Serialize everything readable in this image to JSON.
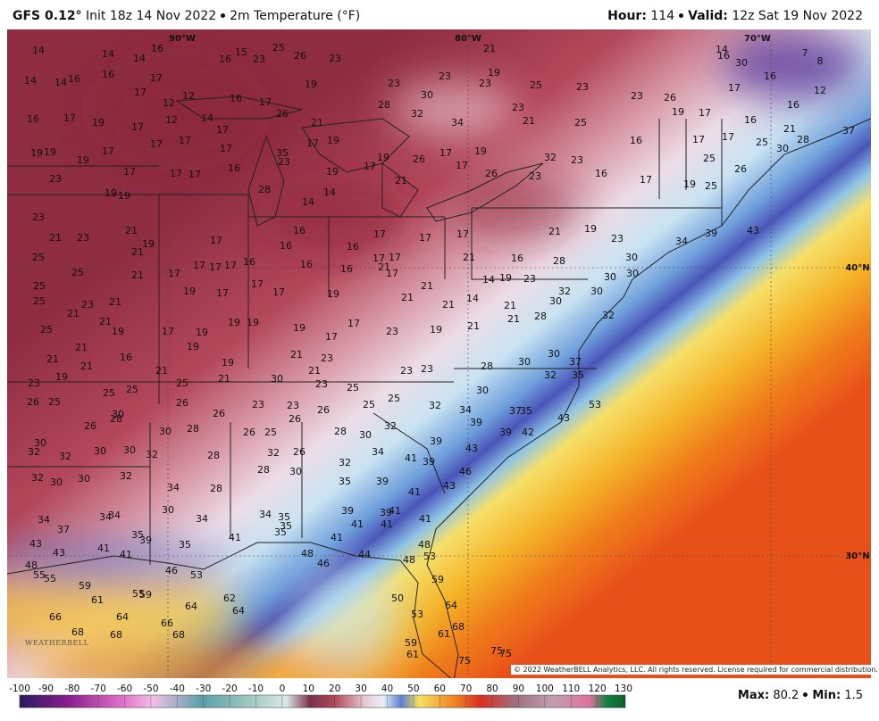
{
  "header": {
    "model": "GFS 0.12°",
    "init": "Init 18z 14 Nov 2022",
    "field": "2m Temperature (°F)",
    "hour_label": "Hour:",
    "hour": 114,
    "valid_label": "Valid:",
    "valid": "12z Sat 19 Nov 2022"
  },
  "map": {
    "lon_labels": [
      "90°W",
      "80°W",
      "70°W"
    ],
    "lat_labels": [
      "40°N",
      "30°N"
    ],
    "stations": [
      14,
      14,
      16,
      14,
      15,
      25,
      26,
      23,
      16,
      23,
      21,
      19,
      23,
      23,
      25,
      23,
      14,
      16,
      7,
      30,
      8,
      14,
      14,
      16,
      16,
      17,
      17,
      12,
      12,
      16,
      17,
      19,
      23,
      28,
      32,
      34,
      30,
      23,
      21,
      25,
      23,
      26,
      19,
      17,
      17,
      16,
      12,
      16,
      16,
      28,
      21,
      25,
      30,
      37,
      16,
      17,
      19,
      17,
      12,
      14,
      17,
      26,
      21,
      19,
      17,
      35,
      23,
      16,
      17,
      17,
      19,
      19,
      19,
      17,
      17,
      17,
      17,
      17,
      19,
      26,
      17,
      19,
      17,
      32,
      23,
      25,
      26,
      23,
      19,
      19,
      17,
      17,
      17,
      16,
      19,
      16,
      17,
      19,
      25,
      28,
      14,
      14,
      21,
      26,
      23,
      23,
      21,
      23,
      21,
      19,
      17,
      16,
      16,
      16,
      17,
      17,
      17,
      21,
      19,
      23,
      34,
      39,
      43,
      25,
      25,
      21,
      21,
      17,
      17,
      17,
      17,
      16,
      16,
      16,
      17,
      21,
      17,
      17,
      21,
      16,
      28,
      30,
      30,
      30,
      14,
      19,
      23,
      25,
      25,
      23,
      21,
      19,
      17,
      17,
      17,
      19,
      21,
      21,
      14,
      21,
      32,
      30,
      32,
      21,
      21,
      25,
      21,
      19,
      17,
      19,
      19,
      19,
      19,
      17,
      17,
      23,
      19,
      21,
      21,
      28,
      30,
      19,
      21,
      16,
      21,
      21,
      21,
      19,
      19,
      21,
      23,
      30,
      23,
      26,
      25,
      25,
      25,
      25,
      21,
      30,
      21,
      23,
      25,
      23,
      23,
      28,
      30,
      37,
      32,
      35,
      30,
      26,
      26,
      23,
      23,
      26,
      26,
      25,
      25,
      32,
      34,
      37,
      35,
      53,
      43,
      30,
      28,
      26,
      30,
      28,
      26,
      25,
      28,
      30,
      32,
      39,
      39,
      42,
      30,
      32,
      32,
      30,
      30,
      32,
      28,
      32,
      26,
      34,
      39,
      43,
      41,
      39,
      46,
      32,
      28,
      30,
      32,
      30,
      30,
      32,
      34,
      28,
      35,
      39,
      41,
      43,
      34,
      37,
      34,
      34,
      30,
      34,
      34,
      35,
      35,
      35,
      39,
      41,
      39,
      41,
      41,
      41,
      35,
      39,
      41,
      41,
      35,
      41,
      43,
      43,
      41,
      48,
      46,
      44,
      48,
      48,
      53,
      48,
      55,
      55,
      46,
      53,
      59,
      61,
      55,
      59,
      62,
      64,
      64,
      59,
      50,
      53,
      64,
      66,
      64,
      68,
      66,
      68,
      68,
      61,
      68,
      59,
      61,
      75,
      75,
      75
    ],
    "copyright": "© 2022 WeatherBELL Analytics, LLC. All rights reserved. License required for commercial distribution.",
    "logo": "WEATHERBELL"
  },
  "colorbar": {
    "ticks": [
      -100,
      -90,
      -80,
      -70,
      -60,
      -50,
      -40,
      -30,
      -20,
      -10,
      0,
      10,
      20,
      30,
      40,
      50,
      60,
      70,
      80,
      90,
      100,
      110,
      120,
      130
    ]
  },
  "footer": {
    "max_label": "Max:",
    "max": 80.2,
    "min_label": "Min:",
    "min": 1.5
  }
}
